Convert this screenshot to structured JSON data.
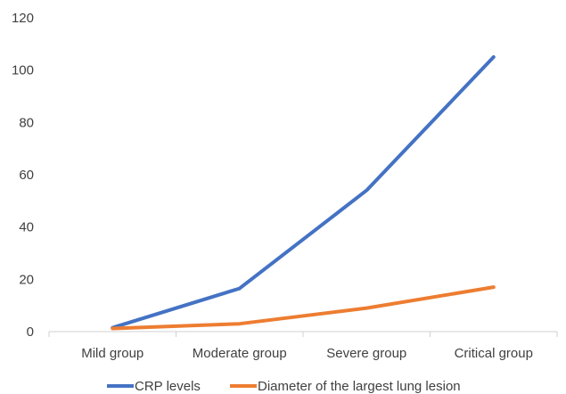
{
  "chart_data": {
    "type": "line",
    "title": "",
    "xlabel": "",
    "ylabel": "",
    "categories": [
      "Mild group",
      "Moderate group",
      "Severe group",
      "Critical group"
    ],
    "series": [
      {
        "name": "CRP levels",
        "color": "#4472C4",
        "values": [
          1.5,
          16.5,
          54,
          105
        ]
      },
      {
        "name": "Diameter of the largest lung lesion",
        "color": "#ED7D31",
        "values": [
          1.2,
          3,
          9,
          17
        ]
      }
    ],
    "ylim": [
      0,
      120
    ],
    "yticks": [
      0,
      20,
      40,
      60,
      80,
      100,
      120
    ],
    "grid": false,
    "legend_position": "bottom"
  }
}
